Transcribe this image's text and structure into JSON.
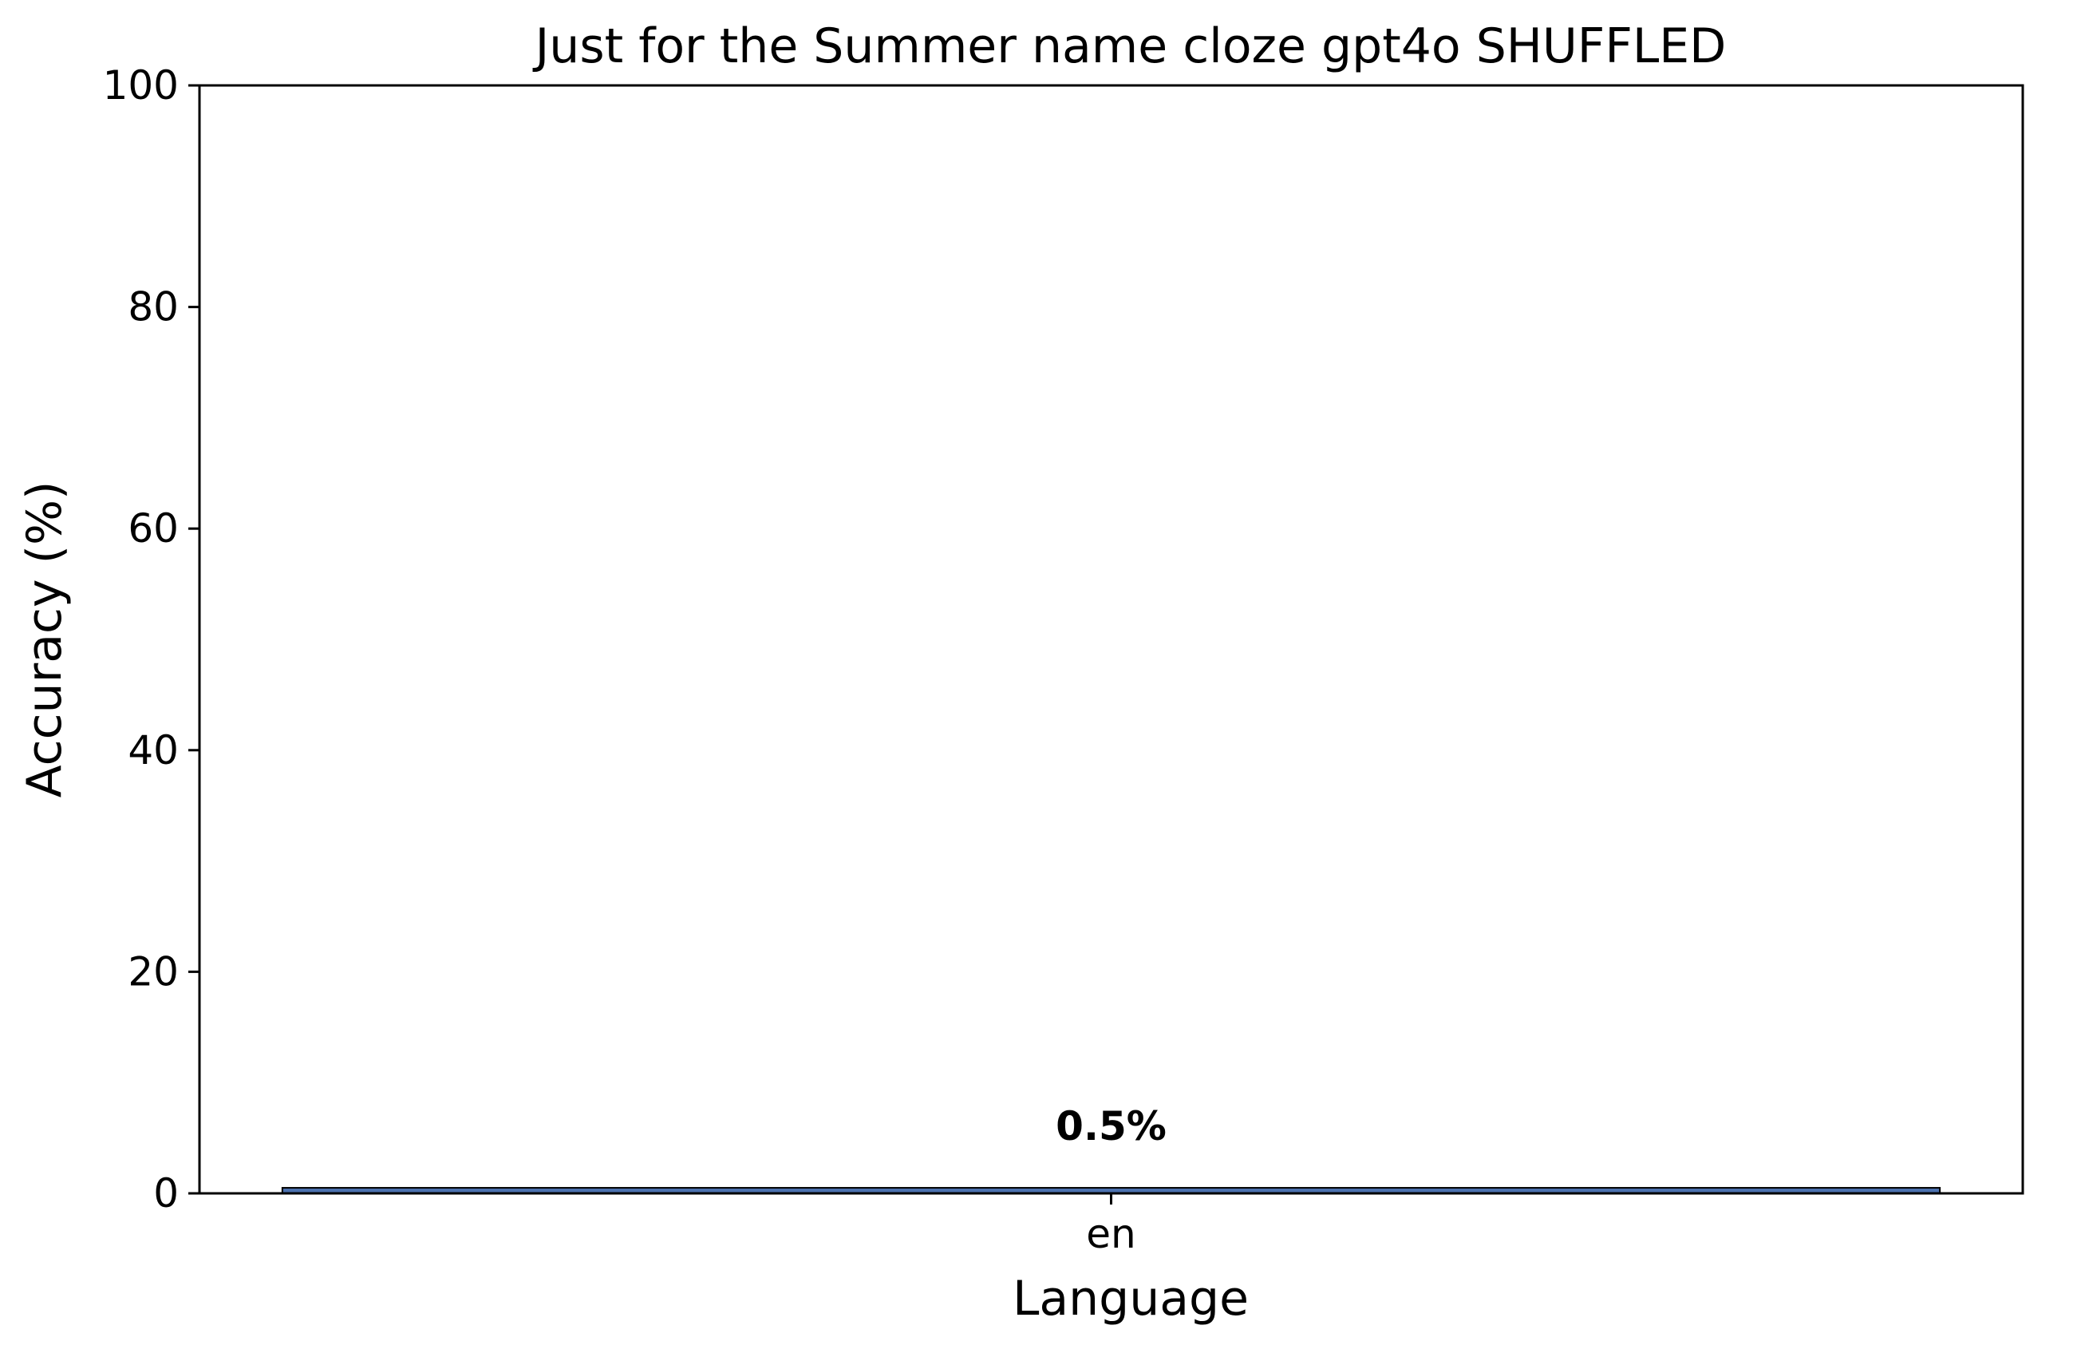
{
  "chart_data": {
    "type": "bar",
    "title": "Just for the Summer name cloze gpt4o SHUFFLED",
    "xlabel": "Language",
    "ylabel": "Accuracy (%)",
    "categories": [
      "en"
    ],
    "values": [
      0.5
    ],
    "data_labels": [
      "0.5%"
    ],
    "ylim": [
      0,
      100
    ],
    "yticks": [
      0,
      20,
      40,
      60,
      80,
      100
    ],
    "grid": false,
    "legend": "none",
    "colors": {
      "bar_fill": "#4c72b0",
      "bar_edge": "#000000",
      "axis": "#000000",
      "text": "#000000",
      "background": "#ffffff"
    }
  }
}
